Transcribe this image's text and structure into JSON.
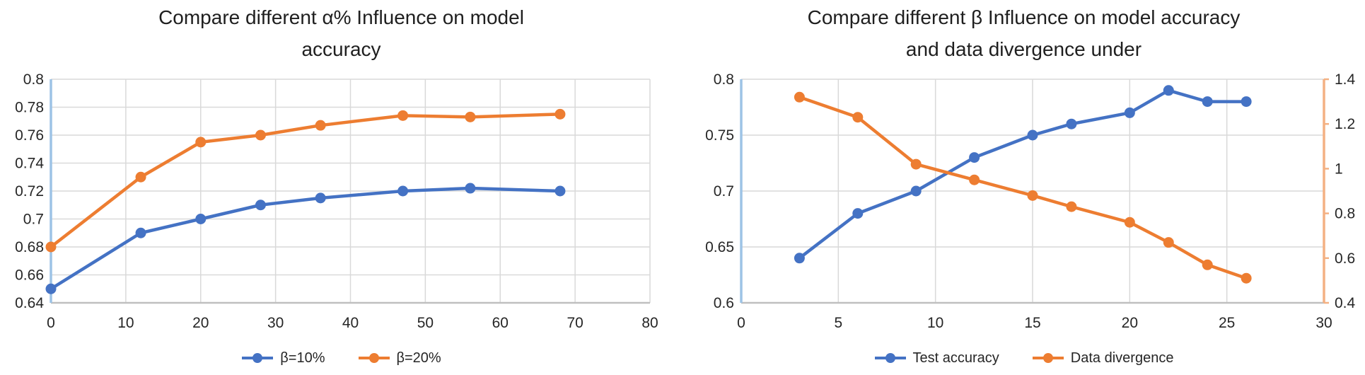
{
  "page": {
    "background": "#ffffff"
  },
  "colors": {
    "series_blue": "#4472C4",
    "series_orange": "#ED7D31",
    "gridline": "#D9D9D9",
    "axis_baseline": "#BFBFBF",
    "left_axis": "#9DC3E6",
    "right_axis": "#F4B183",
    "text": "#262626"
  },
  "chart_data": [
    {
      "type": "line",
      "title": "Compare different α% Influence on model\naccuracy",
      "x": [
        0,
        12,
        20,
        28,
        36,
        47,
        56,
        68
      ],
      "series": [
        {
          "name": "β=10%",
          "color": "#4472C4",
          "axis": "left",
          "values": [
            0.65,
            0.69,
            0.7,
            0.71,
            0.715,
            0.72,
            0.722,
            0.72
          ]
        },
        {
          "name": "β=20%",
          "color": "#ED7D31",
          "axis": "left",
          "values": [
            0.68,
            0.73,
            0.755,
            0.76,
            0.767,
            0.774,
            0.773,
            0.775
          ]
        }
      ],
      "xlim": [
        0,
        80
      ],
      "x_ticks": [
        "0",
        "10",
        "20",
        "30",
        "40",
        "50",
        "60",
        "70",
        "80"
      ],
      "ylim": [
        0.64,
        0.8
      ],
      "y_ticks": [
        "0.8",
        "0.78",
        "0.76",
        "0.74",
        "0.72",
        "0.7",
        "0.68",
        "0.66",
        "0.64"
      ],
      "xlabel": "",
      "ylabel": "",
      "grid": true,
      "legend_position": "bottom"
    },
    {
      "type": "line",
      "title": "Compare different β Influence on model accuracy\nand data divergence under",
      "x": [
        3,
        6,
        9,
        12,
        15,
        17,
        20,
        22,
        24,
        26
      ],
      "series": [
        {
          "name": "Test accuracy",
          "color": "#4472C4",
          "axis": "left",
          "values": [
            0.64,
            0.68,
            0.7,
            0.73,
            0.75,
            0.76,
            0.77,
            0.79,
            0.78,
            0.78
          ]
        },
        {
          "name": "Data divergence",
          "color": "#ED7D31",
          "axis": "right",
          "values": [
            1.32,
            1.23,
            1.02,
            0.95,
            0.88,
            0.83,
            0.76,
            0.67,
            0.57,
            0.51
          ]
        }
      ],
      "xlim": [
        0,
        30
      ],
      "x_ticks": [
        "0",
        "5",
        "10",
        "15",
        "20",
        "25",
        "30"
      ],
      "ylim": [
        0.6,
        0.8
      ],
      "y_ticks": [
        "0.8",
        "0.75",
        "0.7",
        "0.65",
        "0.6"
      ],
      "y2lim": [
        0.4,
        1.4
      ],
      "y2_ticks": [
        "1.4",
        "1.2",
        "1",
        "0.8",
        "0.6",
        "0.4"
      ],
      "xlabel": "",
      "ylabel": "",
      "y2label": "",
      "grid": true,
      "legend_position": "bottom"
    }
  ]
}
